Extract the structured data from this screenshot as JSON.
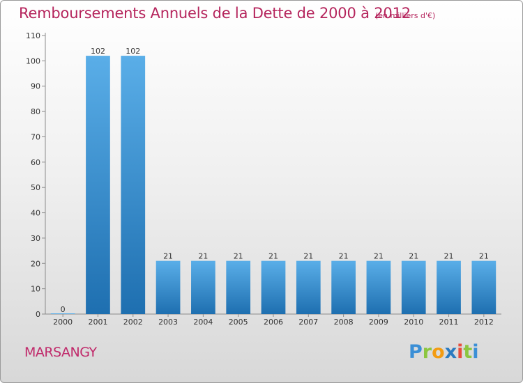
{
  "title": "Remboursements Annuels de la Dette de 2000 à 2012",
  "unit": "(en milliers d'€)",
  "commune": "MARSANGY",
  "logo": {
    "letters": [
      "P",
      "r",
      "o",
      "x",
      "i",
      "t",
      "i"
    ],
    "colors": [
      "#3b8fd6",
      "#8cc63f",
      "#f39c12",
      "#2b7bc0",
      "#e84d3c",
      "#8cc63f",
      "#3b8fd6"
    ]
  },
  "colors": {
    "bar_top": "#5aaee8",
    "bar_bottom": "#1e6fb0",
    "title": "#b5245c"
  },
  "chart_data": {
    "type": "bar",
    "categories": [
      "2000",
      "2001",
      "2002",
      "2003",
      "2004",
      "2005",
      "2006",
      "2007",
      "2008",
      "2009",
      "2010",
      "2011",
      "2012"
    ],
    "values": [
      0,
      102,
      102,
      21,
      21,
      21,
      21,
      21,
      21,
      21,
      21,
      21,
      21
    ],
    "ylim": [
      0,
      110
    ],
    "yticks": [
      0,
      10,
      20,
      30,
      40,
      50,
      60,
      70,
      80,
      90,
      100,
      110
    ],
    "grid": false
  }
}
